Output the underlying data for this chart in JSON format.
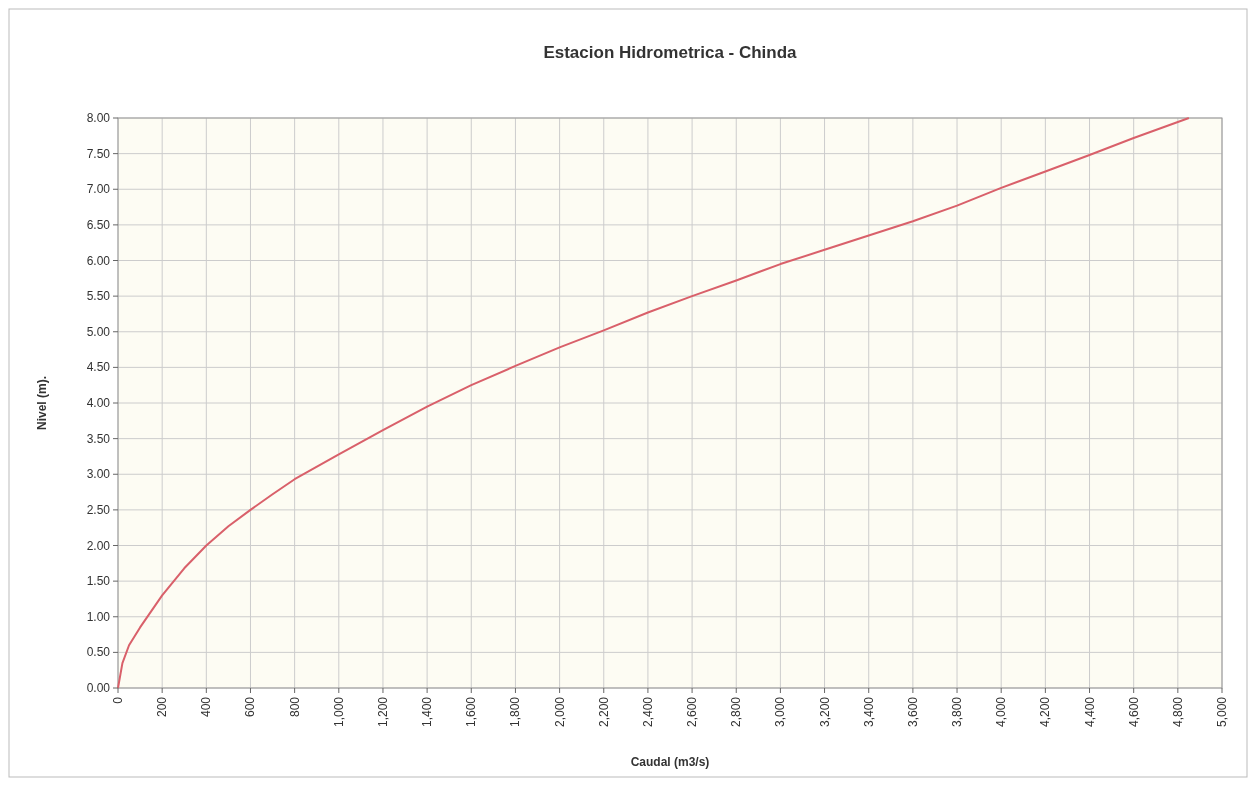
{
  "chart_data": {
    "type": "line",
    "title": "Estacion Hidrometrica - Chinda",
    "xlabel": "Caudal (m3/s)",
    "ylabel": "Nivel (m).",
    "x": [
      0,
      20,
      50,
      100,
      200,
      300,
      400,
      500,
      600,
      700,
      800,
      1000,
      1200,
      1400,
      1600,
      1800,
      2000,
      2200,
      2400,
      2600,
      2800,
      3000,
      3200,
      3400,
      3600,
      3800,
      4000,
      4200,
      4400,
      4600,
      4850
    ],
    "series": [
      {
        "color": "#d9606a",
        "values": [
          0,
          0.35,
          0.6,
          0.85,
          1.3,
          1.68,
          2.0,
          2.27,
          2.5,
          2.72,
          2.93,
          3.28,
          3.62,
          3.95,
          4.25,
          4.52,
          4.78,
          5.02,
          5.27,
          5.5,
          5.72,
          5.95,
          6.15,
          6.35,
          6.55,
          6.77,
          7.02,
          7.25,
          7.48,
          7.72,
          8.0
        ]
      }
    ],
    "xlim": [
      0,
      5000
    ],
    "ylim": [
      0,
      8
    ],
    "xticks": [
      0,
      200,
      400,
      600,
      800,
      {
        "value": 1000,
        "label": "1,000"
      },
      {
        "value": 1200,
        "label": "1,200"
      },
      {
        "value": 1400,
        "label": "1,400"
      },
      {
        "value": 1600,
        "label": "1,600"
      },
      {
        "value": 1800,
        "label": "1,800"
      },
      {
        "value": 2000,
        "label": "2,000"
      },
      {
        "value": 2200,
        "label": "2,200"
      },
      {
        "value": 2400,
        "label": "2,400"
      },
      {
        "value": 2600,
        "label": "2,600"
      },
      {
        "value": 2800,
        "label": "2,800"
      },
      {
        "value": 3000,
        "label": "3,000"
      },
      {
        "value": 3200,
        "label": "3,200"
      },
      {
        "value": 3400,
        "label": "3,400"
      },
      {
        "value": 3600,
        "label": "3,600"
      },
      {
        "value": 3800,
        "label": "3,800"
      },
      {
        "value": 4000,
        "label": "4,000"
      },
      {
        "value": 4200,
        "label": "4,200"
      },
      {
        "value": 4400,
        "label": "4,400"
      },
      {
        "value": 4600,
        "label": "4,600"
      },
      {
        "value": 4800,
        "label": "4,800"
      },
      {
        "value": 5000,
        "label": "5,000"
      }
    ],
    "yticks": [
      {
        "value": 0,
        "label": "0.00"
      },
      {
        "value": 0.5,
        "label": "0.50"
      },
      {
        "value": 1,
        "label": "1.00"
      },
      {
        "value": 1.5,
        "label": "1.50"
      },
      {
        "value": 2,
        "label": "2.00"
      },
      {
        "value": 2.5,
        "label": "2.50"
      },
      {
        "value": 3,
        "label": "3.00"
      },
      {
        "value": 3.5,
        "label": "3.50"
      },
      {
        "value": 4,
        "label": "4.00"
      },
      {
        "value": 4.5,
        "label": "4.50"
      },
      {
        "value": 5,
        "label": "5.00"
      },
      {
        "value": 5.5,
        "label": "5.50"
      },
      {
        "value": 6,
        "label": "6.00"
      },
      {
        "value": 6.5,
        "label": "6.50"
      },
      {
        "value": 7,
        "label": "7.00"
      },
      {
        "value": 7.5,
        "label": "7.50"
      },
      {
        "value": 8,
        "label": "8.00"
      }
    ],
    "grid": true,
    "marker": "none",
    "line_style": "solid"
  }
}
